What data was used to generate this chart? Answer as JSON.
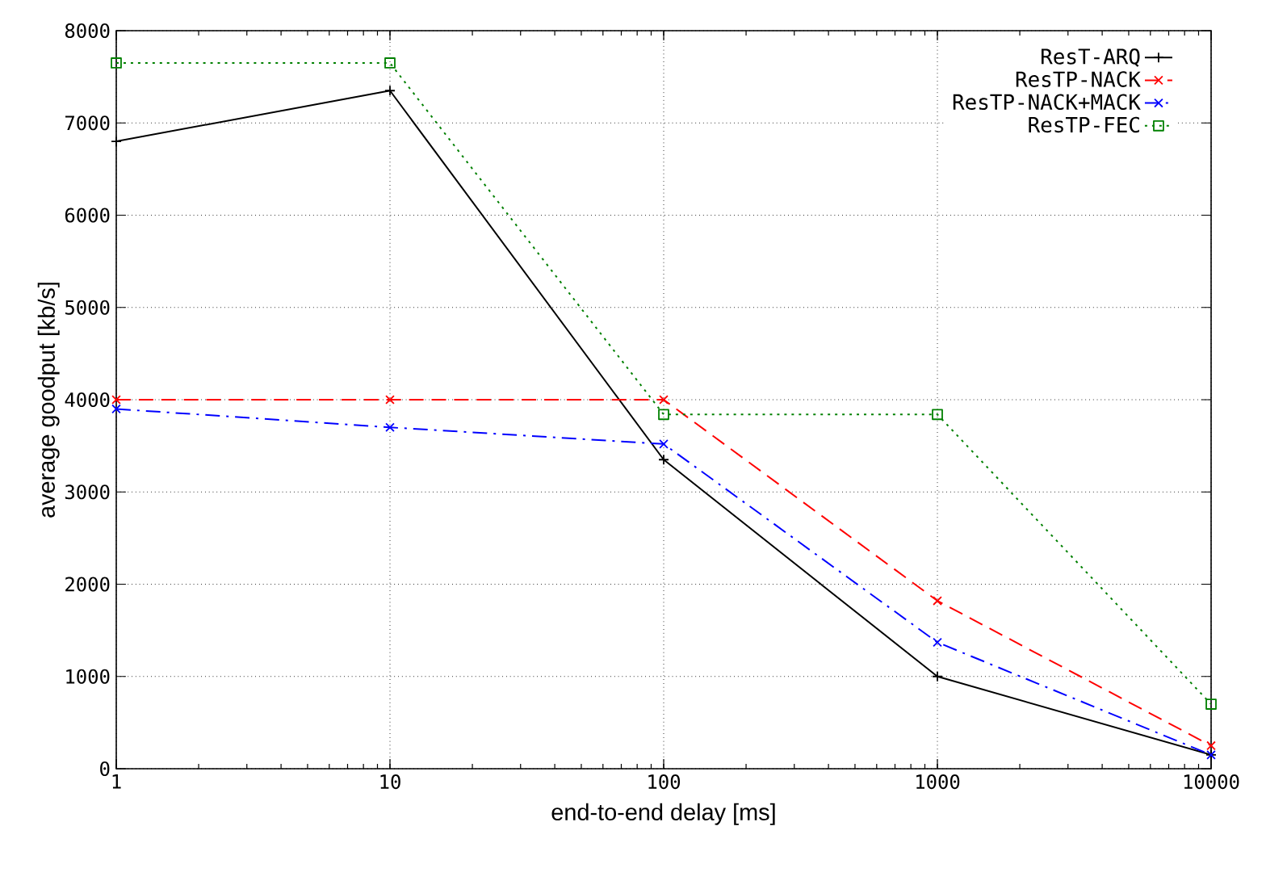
{
  "chart_data": {
    "type": "line",
    "xlabel": "end-to-end delay [ms]",
    "ylabel": "average goodput [kb/s]",
    "x": [
      1,
      10,
      100,
      1000,
      10000
    ],
    "series": [
      {
        "name": "ResT-ARQ",
        "color": "#000000",
        "marker": "plus",
        "line_style": "solid",
        "values": [
          6800,
          7350,
          3350,
          1000,
          150
        ]
      },
      {
        "name": "ResTP-NACK",
        "color": "#ff0000",
        "marker": "cross",
        "line_style": "dashed",
        "values": [
          4000,
          4000,
          4000,
          1820,
          250
        ]
      },
      {
        "name": "ResTP-NACK+MACK",
        "color": "#0000ff",
        "marker": "cross",
        "line_style": "dashdot",
        "values": [
          3900,
          3700,
          3520,
          1370,
          150
        ]
      },
      {
        "name": "ResTP-FEC",
        "color": "#008000",
        "marker": "square",
        "line_style": "dotted",
        "values": [
          7650,
          7650,
          3840,
          3840,
          700
        ]
      }
    ],
    "log": "x",
    "xlim": [
      1,
      10000
    ],
    "ylim": [
      0,
      8000
    ],
    "xticks": [
      1,
      10,
      100,
      1000,
      10000
    ],
    "yticks": [
      0,
      1000,
      2000,
      3000,
      4000,
      5000,
      6000,
      7000,
      8000
    ],
    "grid": true,
    "legend": "top right"
  }
}
